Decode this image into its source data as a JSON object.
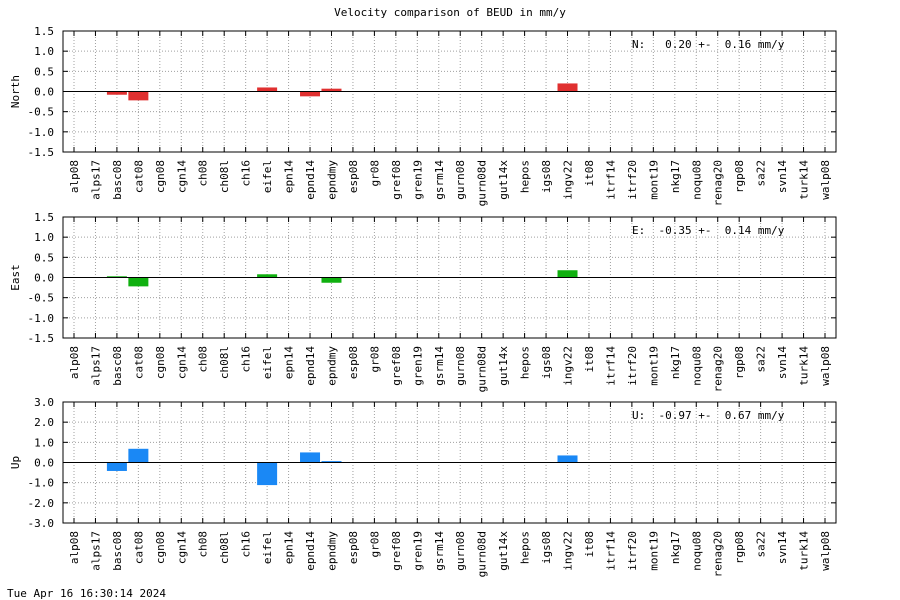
{
  "title": "Velocity comparison of BEUD in mm/y",
  "timestamp": "Tue Apr 16 16:30:14 2024",
  "chart_data": [
    {
      "type": "bar",
      "ylabel": "North",
      "ylim": [
        -1.5,
        1.5
      ],
      "yticks": [
        "1.5",
        "1.0",
        "0.5",
        "0.0",
        "-0.5",
        "-1.0",
        "-1.5"
      ],
      "grid": true,
      "color": "#e03030",
      "annotation": "N:   0.20 +-  0.16 mm/y",
      "categories": [
        "alp08",
        "alps17",
        "basc08",
        "cat08",
        "cgn08",
        "cgn14",
        "ch08",
        "ch08l",
        "ch16",
        "eifel",
        "epn14",
        "epnd14",
        "epndmy",
        "esp08",
        "gr08",
        "gref08",
        "gren19",
        "gsrm14",
        "gurn08",
        "gurn08d",
        "gut14x",
        "hepos",
        "igs08",
        "ingv22",
        "it08",
        "itrf14",
        "itrf20",
        "mont19",
        "nkg17",
        "noqu08",
        "renag20",
        "rgp08",
        "sa22",
        "svn14",
        "turk14",
        "walp08"
      ],
      "values": [
        0,
        0,
        -0.08,
        -0.22,
        0,
        0,
        0,
        0,
        0,
        0.1,
        0,
        -0.12,
        0.07,
        0,
        0,
        0,
        0,
        0,
        0,
        0,
        0,
        0,
        0,
        0.2,
        0,
        0,
        0,
        0,
        0,
        0,
        0,
        0,
        0,
        0,
        0,
        0
      ]
    },
    {
      "type": "bar",
      "ylabel": "East",
      "ylim": [
        -1.5,
        1.5
      ],
      "yticks": [
        "1.5",
        "1.0",
        "0.5",
        "0.0",
        "-0.5",
        "-1.0",
        "-1.5"
      ],
      "grid": true,
      "color": "#10b010",
      "annotation": "E:  -0.35 +-  0.14 mm/y",
      "categories": [
        "alp08",
        "alps17",
        "basc08",
        "cat08",
        "cgn08",
        "cgn14",
        "ch08",
        "ch08l",
        "ch16",
        "eifel",
        "epn14",
        "epnd14",
        "epndmy",
        "esp08",
        "gr08",
        "gref08",
        "gren19",
        "gsrm14",
        "gurn08",
        "gurn08d",
        "gut14x",
        "hepos",
        "igs08",
        "ingv22",
        "it08",
        "itrf14",
        "itrf20",
        "mont19",
        "nkg17",
        "noqu08",
        "renag20",
        "rgp08",
        "sa22",
        "svn14",
        "turk14",
        "walp08"
      ],
      "values": [
        0,
        0,
        0.03,
        -0.22,
        0,
        0,
        0,
        0,
        0,
        0.08,
        0,
        0,
        -0.13,
        0,
        0,
        0,
        0,
        0,
        0,
        0,
        0,
        0,
        0,
        0.18,
        0,
        0,
        0,
        0,
        0,
        0,
        0,
        0,
        0,
        0,
        0,
        0
      ]
    },
    {
      "type": "bar",
      "ylabel": "Up",
      "ylim": [
        -3.0,
        3.0
      ],
      "yticks": [
        "3.0",
        "2.0",
        "1.0",
        "0.0",
        "-1.0",
        "-2.0",
        "-3.0"
      ],
      "grid": true,
      "color": "#1a88f5",
      "annotation": "U:  -0.97 +-  0.67 mm/y",
      "categories": [
        "alp08",
        "alps17",
        "basc08",
        "cat08",
        "cgn08",
        "cgn14",
        "ch08",
        "ch08l",
        "ch16",
        "eifel",
        "epn14",
        "epnd14",
        "epndmy",
        "esp08",
        "gr08",
        "gref08",
        "gren19",
        "gsrm14",
        "gurn08",
        "gurn08d",
        "gut14x",
        "hepos",
        "igs08",
        "ingv22",
        "it08",
        "itrf14",
        "itrf20",
        "mont19",
        "nkg17",
        "noqu08",
        "renag20",
        "rgp08",
        "sa22",
        "svn14",
        "turk14",
        "walp08"
      ],
      "values": [
        0,
        0,
        -0.42,
        0.68,
        0,
        0,
        0,
        0,
        0,
        -1.12,
        0,
        0.5,
        0.07,
        0,
        0,
        0,
        0,
        0,
        0,
        0,
        0,
        0,
        0,
        0.35,
        0,
        0,
        0,
        0,
        0,
        0,
        0,
        0,
        0,
        0,
        0,
        0
      ]
    }
  ]
}
